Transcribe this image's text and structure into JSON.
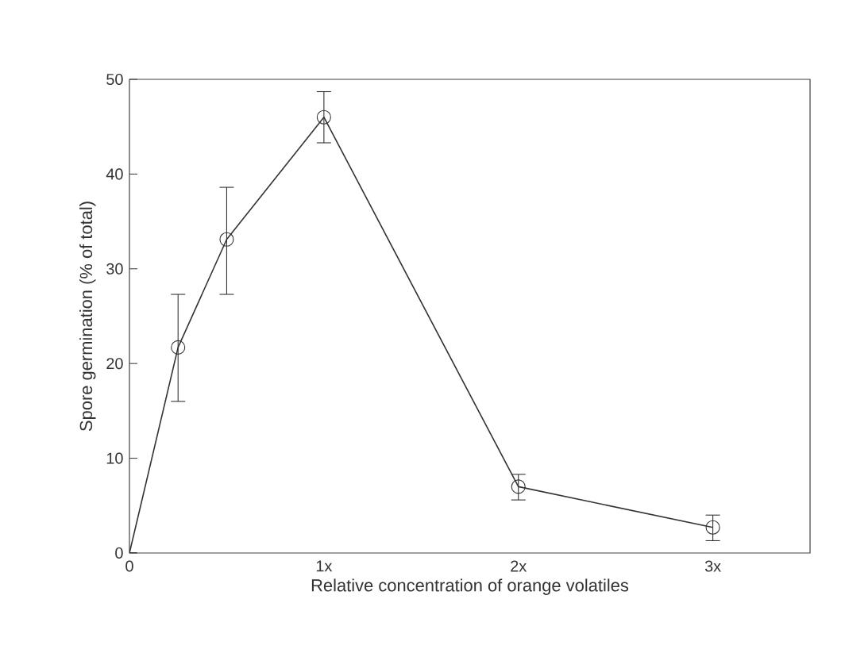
{
  "chart_data": {
    "type": "line",
    "xlabel": "Relative concentration of orange volatiles",
    "ylabel": "Spore germination (% of total)",
    "x": [
      0,
      0.25,
      0.5,
      1,
      2,
      3
    ],
    "series": [
      {
        "color": "#333333",
        "values": [
          0,
          21.7,
          33.1,
          46.0,
          7.0,
          2.7
        ],
        "errors": [
          null,
          [
            16.0,
            27.3
          ],
          [
            27.3,
            38.6
          ],
          [
            43.3,
            48.7
          ],
          [
            5.6,
            8.3
          ],
          [
            1.3,
            4.0
          ]
        ]
      }
    ],
    "xlim": [
      0,
      3.5
    ],
    "ylim": [
      0,
      50
    ],
    "xticks": [
      0,
      {
        "value": 1,
        "label": "1x"
      },
      {
        "value": 2,
        "label": "2x"
      },
      {
        "value": 3,
        "label": "3x"
      }
    ],
    "yticks": [
      0,
      10,
      20,
      30,
      40,
      50
    ],
    "marker": "circle",
    "grid": false
  }
}
